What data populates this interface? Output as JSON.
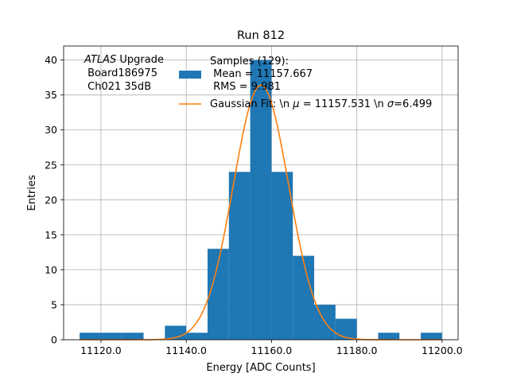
{
  "chart_data": {
    "type": "bar",
    "title": "Run 812",
    "xlabel": "Energy [ADC Counts]",
    "ylabel": "Entries",
    "xlim": [
      11111.25,
      11203.75
    ],
    "ylim": [
      0,
      42
    ],
    "grid": true,
    "x_ticks": [
      11120,
      11140,
      11160,
      11180,
      11200
    ],
    "x_tick_labels": [
      "11120.0",
      "11140.0",
      "11160.0",
      "11180.0",
      "11200.0"
    ],
    "y_ticks": [
      0,
      5,
      10,
      15,
      20,
      25,
      30,
      35,
      40
    ],
    "y_tick_labels": [
      "0",
      "5",
      "10",
      "15",
      "20",
      "25",
      "30",
      "35",
      "40"
    ],
    "annotation": {
      "line1_italic": "ATLAS",
      "line1_rest": " Upgrade",
      "line2": " Board186975",
      "line3": " Ch021 35dB"
    },
    "legend": {
      "location": "top-right",
      "samples_label": [
        "Samples (129):",
        " Mean = 11157.667",
        " RMS = 9.981"
      ],
      "fit_label_pre": "Gaussian Fit: \\n ",
      "fit_label_mu": "μ",
      "fit_label_mid": " = 11157.531 \\n ",
      "fit_label_sigma": "σ",
      "fit_label_post": "=6.499"
    },
    "histogram": {
      "name": "Samples",
      "color": "#1f77b4",
      "bin_edges": [
        11115,
        11120,
        11125,
        11130,
        11135,
        11140,
        11145,
        11150,
        11155,
        11160,
        11165,
        11170,
        11175,
        11180,
        11185,
        11190,
        11195,
        11200
      ],
      "counts": [
        1,
        1,
        1,
        0,
        2,
        1,
        13,
        24,
        40,
        24,
        12,
        5,
        3,
        0,
        1,
        0,
        1
      ]
    },
    "fit": {
      "name": "Gaussian Fit",
      "color": "#ff7f0e",
      "mu": 11157.531,
      "sigma": 6.499,
      "amplitude": 36.4,
      "x_range": [
        11115,
        11200
      ]
    }
  }
}
